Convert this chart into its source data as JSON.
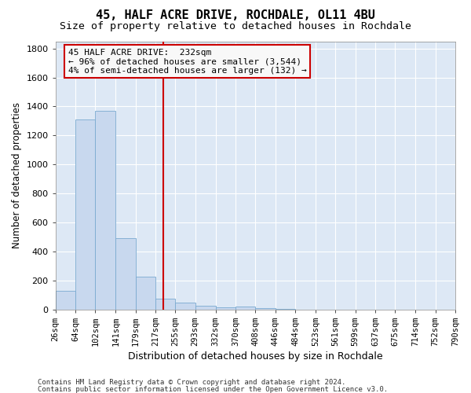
{
  "title": "45, HALF ACRE DRIVE, ROCHDALE, OL11 4BU",
  "subtitle": "Size of property relative to detached houses in Rochdale",
  "xlabel": "Distribution of detached houses by size in Rochdale",
  "ylabel": "Number of detached properties",
  "bar_color": "#c8d8ee",
  "bar_edge_color": "#7aaad0",
  "bar_heights": [
    130,
    1310,
    1370,
    490,
    225,
    75,
    45,
    25,
    15,
    20,
    10,
    5,
    0,
    0,
    0,
    0,
    0,
    0,
    0,
    0
  ],
  "bin_edges": [
    26,
    64,
    102,
    141,
    179,
    217,
    255,
    293,
    332,
    370,
    408,
    446,
    484,
    523,
    561,
    599,
    637,
    675,
    714,
    752,
    790
  ],
  "xtick_labels": [
    "26sqm",
    "64sqm",
    "102sqm",
    "141sqm",
    "179sqm",
    "217sqm",
    "255sqm",
    "293sqm",
    "332sqm",
    "370sqm",
    "408sqm",
    "446sqm",
    "484sqm",
    "523sqm",
    "561sqm",
    "599sqm",
    "637sqm",
    "675sqm",
    "714sqm",
    "752sqm",
    "790sqm"
  ],
  "ylim": [
    0,
    1850
  ],
  "xlim_left": 26,
  "xlim_right": 790,
  "vline_x": 232,
  "vline_color": "#cc0000",
  "annotation_line1": "45 HALF ACRE DRIVE:  232sqm",
  "annotation_line2": "← 96% of detached houses are smaller (3,544)",
  "annotation_line3": "4% of semi-detached houses are larger (132) →",
  "annotation_box_color": "#cc0000",
  "annotation_bg": "#f8f8f8",
  "plot_bg_color": "#dde8f5",
  "fig_bg_color": "#ffffff",
  "grid_color": "#ffffff",
  "footer_line1": "Contains HM Land Registry data © Crown copyright and database right 2024.",
  "footer_line2": "Contains public sector information licensed under the Open Government Licence v3.0.",
  "title_fontsize": 11,
  "subtitle_fontsize": 9.5,
  "ylabel_fontsize": 8.5,
  "xlabel_fontsize": 9,
  "tick_fontsize": 7.5,
  "ytick_fontsize": 8,
  "annotation_fontsize": 8,
  "footer_fontsize": 6.5
}
